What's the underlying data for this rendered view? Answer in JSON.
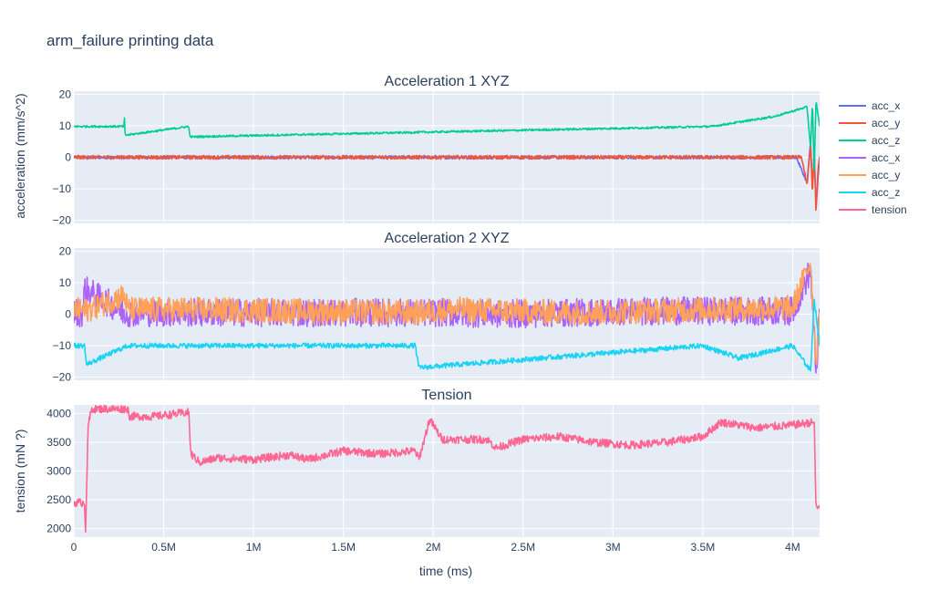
{
  "title": "arm_failure printing data",
  "xlabel": "time (ms)",
  "colors": {
    "plot_bg": "#e5ecf6",
    "grid": "#ffffff",
    "acc1_x": "#636efa",
    "acc1_y": "#ef553b",
    "acc1_z": "#00cc96",
    "acc2_x": "#ab63fa",
    "acc2_y": "#ffa15a",
    "acc2_z": "#19d3f3",
    "tension": "#ff6692"
  },
  "legend": {
    "placement": "right",
    "items": [
      {
        "label": "acc_x",
        "color": "#636efa"
      },
      {
        "label": "acc_y",
        "color": "#ef553b"
      },
      {
        "label": "acc_z",
        "color": "#00cc96"
      },
      {
        "label": "acc_x",
        "color": "#ab63fa"
      },
      {
        "label": "acc_y",
        "color": "#ffa15a"
      },
      {
        "label": "acc_z",
        "color": "#19d3f3"
      },
      {
        "label": "tension",
        "color": "#ff6692"
      }
    ]
  },
  "x_axis": {
    "range": [
      0,
      4150000
    ],
    "ticks": [
      0,
      500000,
      1000000,
      1500000,
      2000000,
      2500000,
      3000000,
      3500000,
      4000000
    ],
    "tick_labels": [
      "0",
      "0.5M",
      "1M",
      "1.5M",
      "2M",
      "2.5M",
      "3M",
      "3.5M",
      "4M"
    ]
  },
  "chart_data": [
    {
      "type": "line",
      "title": "Acceleration 1 XYZ",
      "ylabel": "acceleration (mm/s^2)",
      "ylim": [
        -21,
        21
      ],
      "yticks": [
        -20,
        -10,
        0,
        10,
        20
      ],
      "ytick_labels": [
        "−20",
        "−10",
        "0",
        "10",
        "20"
      ],
      "grid": true,
      "series": [
        {
          "name": "acc_x",
          "color": "#636efa",
          "base": 0,
          "noise": 0.5,
          "x": [
            0,
            4020000,
            4080000,
            4100000,
            4110000,
            4120000,
            4130000,
            4150000
          ],
          "y": [
            0,
            0,
            -8,
            5,
            -10,
            2,
            -16,
            0
          ]
        },
        {
          "name": "acc_y",
          "color": "#ef553b",
          "base": 0,
          "noise": 0.6,
          "x": [
            0,
            4050000,
            4080000,
            4100000,
            4110000,
            4120000,
            4130000,
            4140000,
            4150000
          ],
          "y": [
            0,
            0,
            -9,
            4,
            -12,
            3,
            -18,
            -5,
            0
          ]
        },
        {
          "name": "acc_z",
          "color": "#00cc96",
          "base": 9.8,
          "noise": 0.3,
          "x": [
            0,
            280000,
            282000,
            285000,
            640000,
            645000,
            3550000,
            3900000,
            4080000,
            4100000,
            4110000,
            4120000,
            4130000,
            4150000
          ],
          "y": [
            9.8,
            9.8,
            13,
            7,
            9.8,
            6.5,
            9.8,
            13,
            16,
            3,
            18,
            -5,
            18,
            10
          ]
        }
      ]
    },
    {
      "type": "line",
      "title": "Acceleration 2 XYZ",
      "ylabel": "",
      "ylim": [
        -21,
        21
      ],
      "yticks": [
        -20,
        -10,
        0,
        10,
        20
      ],
      "ytick_labels": [
        "−20",
        "−10",
        "0",
        "10",
        "20"
      ],
      "grid": true,
      "series": [
        {
          "name": "acc_x",
          "color": "#ab63fa",
          "base": 0.5,
          "noise": 4.5,
          "x": [
            0,
            50000,
            60000,
            280000,
            300000,
            2000000,
            2400000,
            3200000,
            4000000,
            4100000,
            4130000,
            4150000
          ],
          "y": [
            0.5,
            0.5,
            8,
            0.5,
            0.5,
            0.5,
            0,
            1,
            1,
            14,
            -18,
            0
          ]
        },
        {
          "name": "acc_y",
          "color": "#ffa15a",
          "base": 1.5,
          "noise": 4,
          "x": [
            0,
            60000,
            280000,
            300000,
            650000,
            1900000,
            2100000,
            2800000,
            3500000,
            4000000,
            4100000,
            4130000,
            4150000
          ],
          "y": [
            1.5,
            1,
            6,
            1.5,
            1.5,
            0.5,
            1.5,
            0.5,
            1.5,
            2,
            17,
            -15,
            0
          ]
        },
        {
          "name": "acc_z",
          "color": "#19d3f3",
          "base": -10,
          "noise": 0.8,
          "x": [
            0,
            60000,
            70000,
            300000,
            1900000,
            1920000,
            3500000,
            3700000,
            4000000,
            4100000,
            4120000,
            4150000
          ],
          "y": [
            -10,
            -10,
            -16,
            -10,
            -10,
            -17,
            -10,
            -14,
            -10,
            -18,
            5,
            -10
          ]
        }
      ]
    },
    {
      "type": "line",
      "title": "Tension",
      "ylabel": "tension (mN ?)",
      "ylim": [
        1850,
        4150
      ],
      "yticks": [
        2000,
        2500,
        3000,
        3500,
        4000
      ],
      "ytick_labels": [
        "2000",
        "2500",
        "3000",
        "3500",
        "4000"
      ],
      "grid": true,
      "series": [
        {
          "name": "tension",
          "color": "#ff6692",
          "noise": 70,
          "x": [
            0,
            50000,
            60000,
            65000,
            80000,
            100000,
            300000,
            310000,
            450000,
            640000,
            650000,
            700000,
            800000,
            1000000,
            1200000,
            1300000,
            1500000,
            1700000,
            1900000,
            1920000,
            1980000,
            2050000,
            2300000,
            2350000,
            2500000,
            2700000,
            2900000,
            3100000,
            3300000,
            3500000,
            3600000,
            3800000,
            4000000,
            4120000,
            4130000,
            4150000
          ],
          "y": [
            2450,
            2450,
            2450,
            1950,
            3800,
            4080,
            4080,
            3950,
            3950,
            4020,
            3300,
            3150,
            3230,
            3200,
            3280,
            3200,
            3350,
            3300,
            3350,
            3200,
            3900,
            3550,
            3550,
            3400,
            3550,
            3600,
            3500,
            3450,
            3500,
            3600,
            3850,
            3750,
            3800,
            3850,
            2350,
            2400
          ]
        }
      ]
    }
  ]
}
